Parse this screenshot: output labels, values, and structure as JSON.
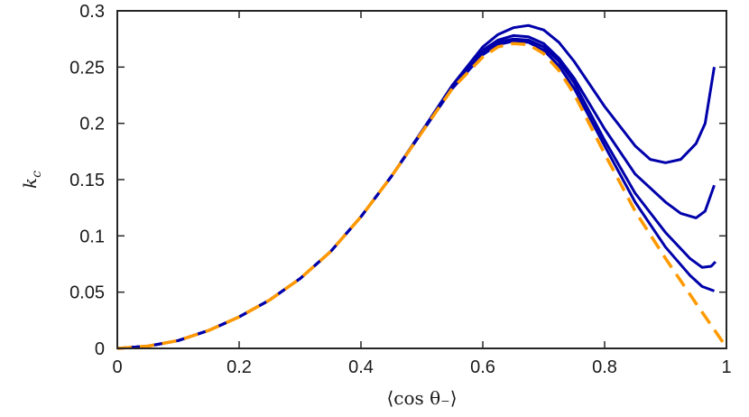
{
  "chart_data": {
    "type": "line",
    "title": "",
    "xlabel": "⟨cos θ₋⟩",
    "ylabel": "k_c",
    "xlim": [
      0,
      1
    ],
    "ylim": [
      0,
      0.3
    ],
    "xticks": [
      0,
      0.2,
      0.4,
      0.6,
      0.8,
      1
    ],
    "xtick_labels": [
      "0",
      "0.2",
      "0.4",
      "0.6",
      "0.8",
      "1"
    ],
    "yticks": [
      0,
      0.05,
      0.1,
      0.15,
      0.2,
      0.25,
      0.3
    ],
    "ytick_labels": [
      "0",
      "0.05",
      "0.1",
      "0.15",
      "0.2",
      "0.25",
      "0.3"
    ],
    "grid": false,
    "legend": "none",
    "series": [
      {
        "style": "solid",
        "color": "#0000aa",
        "x": [
          0,
          0.05,
          0.1,
          0.15,
          0.2,
          0.25,
          0.3,
          0.35,
          0.4,
          0.45,
          0.5,
          0.55,
          0.6,
          0.625,
          0.65,
          0.675,
          0.7,
          0.725,
          0.75,
          0.8,
          0.85,
          0.875,
          0.9,
          0.925,
          0.95,
          0.965,
          0.98
        ],
        "y": [
          0,
          0.002,
          0.007,
          0.016,
          0.028,
          0.043,
          0.062,
          0.086,
          0.117,
          0.153,
          0.193,
          0.234,
          0.268,
          0.279,
          0.285,
          0.287,
          0.283,
          0.272,
          0.255,
          0.215,
          0.18,
          0.168,
          0.165,
          0.168,
          0.182,
          0.2,
          0.25
        ]
      },
      {
        "style": "solid",
        "color": "#0000aa",
        "x": [
          0,
          0.05,
          0.1,
          0.15,
          0.2,
          0.25,
          0.3,
          0.35,
          0.4,
          0.45,
          0.5,
          0.55,
          0.6,
          0.625,
          0.65,
          0.675,
          0.7,
          0.725,
          0.75,
          0.8,
          0.85,
          0.9,
          0.925,
          0.95,
          0.965,
          0.98
        ],
        "y": [
          0,
          0.002,
          0.007,
          0.016,
          0.028,
          0.043,
          0.062,
          0.086,
          0.117,
          0.153,
          0.193,
          0.233,
          0.265,
          0.274,
          0.278,
          0.277,
          0.271,
          0.258,
          0.24,
          0.195,
          0.155,
          0.13,
          0.12,
          0.116,
          0.122,
          0.145
        ]
      },
      {
        "style": "solid",
        "color": "#0000aa",
        "x": [
          0,
          0.05,
          0.1,
          0.15,
          0.2,
          0.25,
          0.3,
          0.35,
          0.4,
          0.45,
          0.5,
          0.55,
          0.6,
          0.625,
          0.65,
          0.675,
          0.7,
          0.725,
          0.75,
          0.8,
          0.85,
          0.9,
          0.94,
          0.96,
          0.975,
          0.982
        ],
        "y": [
          0,
          0.002,
          0.007,
          0.016,
          0.028,
          0.043,
          0.062,
          0.086,
          0.117,
          0.153,
          0.192,
          0.232,
          0.263,
          0.272,
          0.275,
          0.274,
          0.268,
          0.255,
          0.236,
          0.185,
          0.138,
          0.103,
          0.08,
          0.072,
          0.073,
          0.077
        ]
      },
      {
        "style": "solid",
        "color": "#0000aa",
        "x": [
          0,
          0.05,
          0.1,
          0.15,
          0.2,
          0.25,
          0.3,
          0.35,
          0.4,
          0.45,
          0.5,
          0.55,
          0.6,
          0.625,
          0.65,
          0.675,
          0.7,
          0.725,
          0.75,
          0.8,
          0.85,
          0.9,
          0.94,
          0.96,
          0.98
        ],
        "y": [
          0,
          0.002,
          0.007,
          0.016,
          0.028,
          0.043,
          0.062,
          0.086,
          0.117,
          0.153,
          0.192,
          0.231,
          0.261,
          0.27,
          0.273,
          0.272,
          0.265,
          0.251,
          0.231,
          0.18,
          0.13,
          0.09,
          0.065,
          0.055,
          0.051
        ]
      },
      {
        "style": "dashed",
        "color": "#ff9900",
        "x": [
          0,
          0.05,
          0.1,
          0.15,
          0.2,
          0.25,
          0.3,
          0.35,
          0.4,
          0.45,
          0.5,
          0.55,
          0.6,
          0.625,
          0.65,
          0.675,
          0.7,
          0.725,
          0.75,
          0.8,
          0.85,
          0.9,
          0.95,
          1.0
        ],
        "y": [
          0,
          0.002,
          0.007,
          0.016,
          0.028,
          0.043,
          0.062,
          0.086,
          0.117,
          0.153,
          0.192,
          0.231,
          0.259,
          0.268,
          0.271,
          0.27,
          0.262,
          0.247,
          0.226,
          0.173,
          0.122,
          0.08,
          0.04,
          0.001
        ]
      }
    ]
  }
}
